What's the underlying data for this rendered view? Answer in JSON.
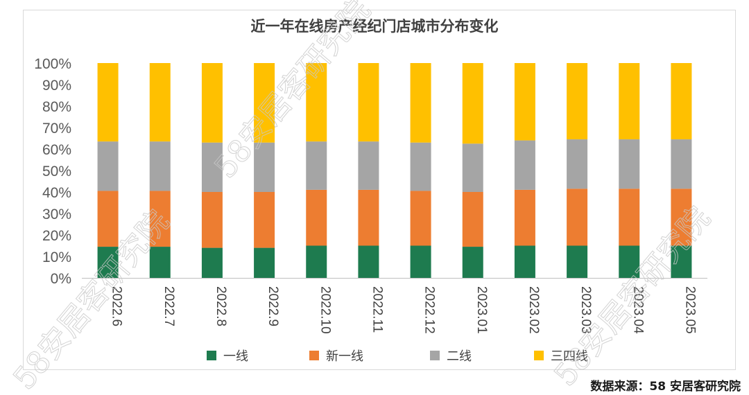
{
  "chart_data": {
    "type": "bar",
    "stacked": true,
    "title": "近一年在线房产经纪门店城市分布变化",
    "categories": [
      "2022.6",
      "2022.7",
      "2022.8",
      "2022.9",
      "2022.10",
      "2022.11",
      "2022.12",
      "2023.01",
      "2023.02",
      "2023.03",
      "2023.04",
      "2023.05"
    ],
    "series": [
      {
        "name": "一线",
        "color": "#1e7b4f",
        "values": [
          14.5,
          14.5,
          14.0,
          14.0,
          15.0,
          15.0,
          15.0,
          14.5,
          15.0,
          15.0,
          15.0,
          15.0
        ]
      },
      {
        "name": "新一线",
        "color": "#ed7d31",
        "values": [
          26.0,
          26.0,
          26.0,
          26.0,
          26.0,
          26.0,
          25.5,
          25.5,
          26.0,
          26.5,
          26.5,
          26.5
        ]
      },
      {
        "name": "二线",
        "color": "#a5a5a5",
        "values": [
          23.0,
          23.0,
          23.0,
          23.0,
          22.5,
          22.5,
          22.5,
          22.5,
          23.0,
          23.0,
          23.0,
          23.0
        ]
      },
      {
        "name": "三四线",
        "color": "#ffc000",
        "values": [
          36.5,
          36.5,
          37.0,
          37.0,
          36.5,
          36.5,
          37.0,
          37.5,
          36.0,
          35.5,
          35.5,
          35.5
        ]
      }
    ],
    "yticks": [
      "0%",
      "10%",
      "20%",
      "30%",
      "40%",
      "50%",
      "60%",
      "70%",
      "80%",
      "90%",
      "100%"
    ],
    "ylim": [
      0,
      100
    ],
    "legend_position": "bottom",
    "grid": false
  },
  "source": "数据来源：58 安居客研究院",
  "watermark": "58安居客研究院"
}
